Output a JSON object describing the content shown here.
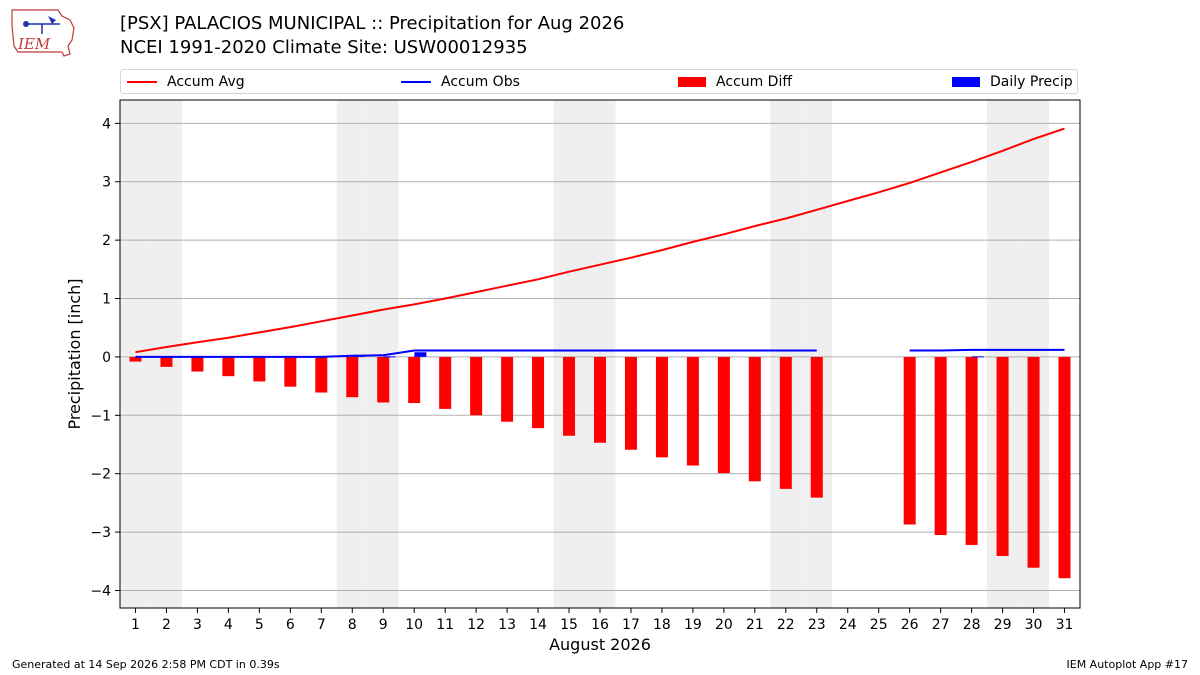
{
  "header": {
    "title_line1": "[PSX] PALACIOS MUNICIPAL :: Precipitation for Aug 2026",
    "title_line2": "NCEI 1991-2020 Climate Site: USW00012935",
    "logo_text": "IEM"
  },
  "footer": {
    "generated": "Generated at 14 Sep 2026 2:58 PM CDT in 0.39s",
    "app": "IEM Autoplot App #17"
  },
  "legend": {
    "position": "top",
    "items": [
      {
        "label": "Accum Avg",
        "color": "#ff0000",
        "kind": "line"
      },
      {
        "label": "Accum Obs",
        "color": "#0000ff",
        "kind": "line"
      },
      {
        "label": "Accum Diff",
        "color": "#ff0000",
        "kind": "bar"
      },
      {
        "label": "Daily Precip",
        "color": "#0000ff",
        "kind": "bar"
      }
    ]
  },
  "chart_data": {
    "type": "bar",
    "xlabel": "August 2026",
    "ylabel": "Precipitation [inch]",
    "xlim": [
      0.5,
      31.5
    ],
    "ylim": [
      -4.3,
      4.4
    ],
    "yticks": [
      -4,
      -3,
      -2,
      -1,
      0,
      1,
      2,
      3,
      4
    ],
    "ytick_labels": [
      "−4",
      "−3",
      "−2",
      "−1",
      "0",
      "1",
      "2",
      "3",
      "4"
    ],
    "grid": true,
    "weekend_days": [
      1,
      2,
      8,
      9,
      15,
      16,
      22,
      23,
      29,
      30
    ],
    "weekend_shade_color": "#efefef",
    "days": [
      1,
      2,
      3,
      4,
      5,
      6,
      7,
      8,
      9,
      10,
      11,
      12,
      13,
      14,
      15,
      16,
      17,
      18,
      19,
      20,
      21,
      22,
      23,
      24,
      25,
      26,
      27,
      28,
      29,
      30,
      31
    ],
    "day_labels": [
      "1",
      "2",
      "3",
      "4",
      "5",
      "6",
      "7",
      "8",
      "9",
      "10",
      "11",
      "12",
      "13",
      "14",
      "15",
      "16",
      "17",
      "18",
      "19",
      "20",
      "21",
      "22",
      "23",
      "24",
      "25",
      "26",
      "27",
      "28",
      "29",
      "30",
      "31"
    ],
    "series": [
      {
        "name": "Accum Avg",
        "kind": "line",
        "color": "#ff0000",
        "values": [
          0.08,
          0.17,
          0.25,
          0.33,
          0.42,
          0.51,
          0.61,
          0.71,
          0.81,
          0.9,
          1.0,
          1.11,
          1.22,
          1.33,
          1.46,
          1.58,
          1.7,
          1.83,
          1.97,
          2.1,
          2.24,
          2.37,
          2.52,
          2.67,
          2.82,
          2.98,
          3.16,
          3.34,
          3.53,
          3.73,
          3.91
        ]
      },
      {
        "name": "Accum Obs",
        "kind": "line",
        "color": "#0000ff",
        "values": [
          0.0,
          0.0,
          0.0,
          0.0,
          0.0,
          0.0,
          0.0,
          0.02,
          0.03,
          0.11,
          0.11,
          0.11,
          0.11,
          0.11,
          0.11,
          0.11,
          0.11,
          0.11,
          0.11,
          0.11,
          0.11,
          0.11,
          0.11,
          null,
          null,
          0.11,
          0.11,
          0.12,
          0.12,
          0.12,
          0.12
        ]
      },
      {
        "name": "Accum Diff",
        "kind": "bar",
        "color": "#ff0000",
        "values": [
          -0.08,
          -0.17,
          -0.25,
          -0.33,
          -0.42,
          -0.51,
          -0.61,
          -0.69,
          -0.78,
          -0.79,
          -0.89,
          -1.0,
          -1.11,
          -1.22,
          -1.35,
          -1.47,
          -1.59,
          -1.72,
          -1.86,
          -1.99,
          -2.13,
          -2.26,
          -2.41,
          null,
          null,
          -2.87,
          -3.05,
          -3.22,
          -3.41,
          -3.61,
          -3.79
        ]
      },
      {
        "name": "Daily Precip",
        "kind": "bar",
        "color": "#0000ff",
        "values": [
          0,
          0,
          0,
          0,
          0,
          0,
          0,
          0.02,
          0.01,
          0.08,
          0,
          0,
          0,
          0,
          0,
          0,
          0,
          0,
          0,
          0,
          0,
          0,
          0,
          null,
          null,
          0,
          0,
          0.01,
          0,
          0,
          0
        ]
      }
    ]
  }
}
